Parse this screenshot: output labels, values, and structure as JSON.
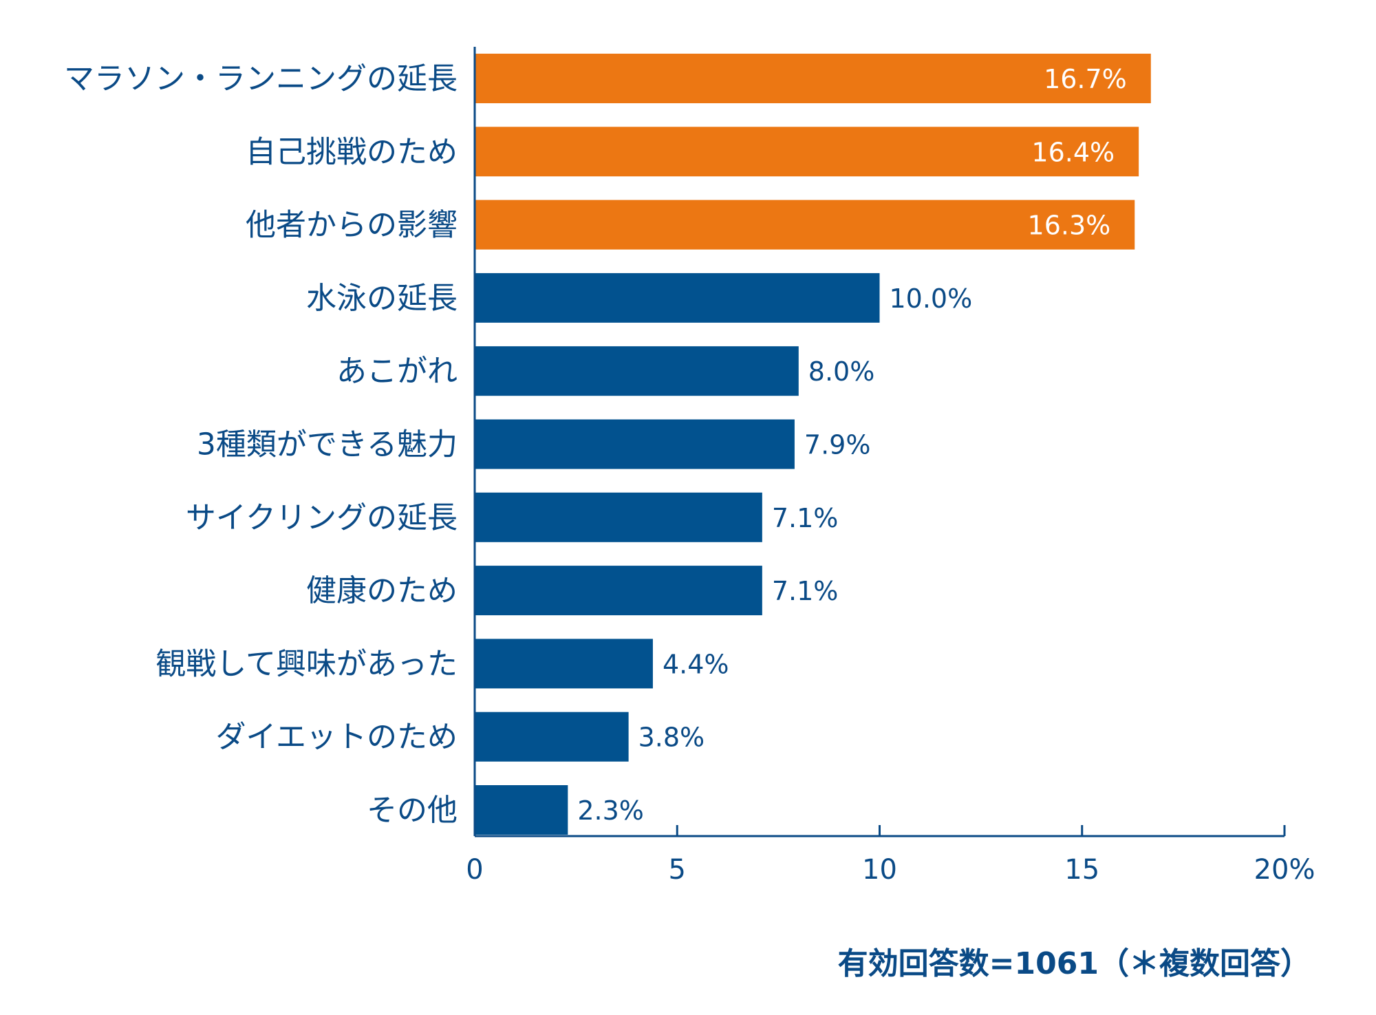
{
  "chart_data": {
    "type": "bar",
    "orientation": "horizontal",
    "categories": [
      "マラソン・ランニングの延長",
      "自己挑戦のため",
      "他者からの影響",
      "水泳の延長",
      "あこがれ",
      "3種類ができる魅力",
      "サイクリングの延長",
      "健康のため",
      "観戦して興味があった",
      "ダイエットのため",
      "その他"
    ],
    "values": [
      16.7,
      16.4,
      16.3,
      10.0,
      8.0,
      7.9,
      7.1,
      7.1,
      4.4,
      3.8,
      2.3
    ],
    "value_labels": [
      "16.7%",
      "16.4%",
      "16.3%",
      "10.0%",
      "8.0%",
      "7.9%",
      "7.1%",
      "7.1%",
      "4.4%",
      "3.8%",
      "2.3%"
    ],
    "highlight_count": 3,
    "xlim": [
      0,
      20
    ],
    "xticks": [
      0,
      5,
      10,
      15,
      20
    ],
    "xtick_labels": [
      "0",
      "5",
      "10",
      "15",
      "20%"
    ],
    "colors": {
      "highlight": "#ec7713",
      "normal": "#02528f",
      "text": "#0a4a86",
      "value_on_bar": "#ffffff"
    },
    "grid": false,
    "legend": "none"
  },
  "note": "有効回答数=1061（＊複数回答）"
}
